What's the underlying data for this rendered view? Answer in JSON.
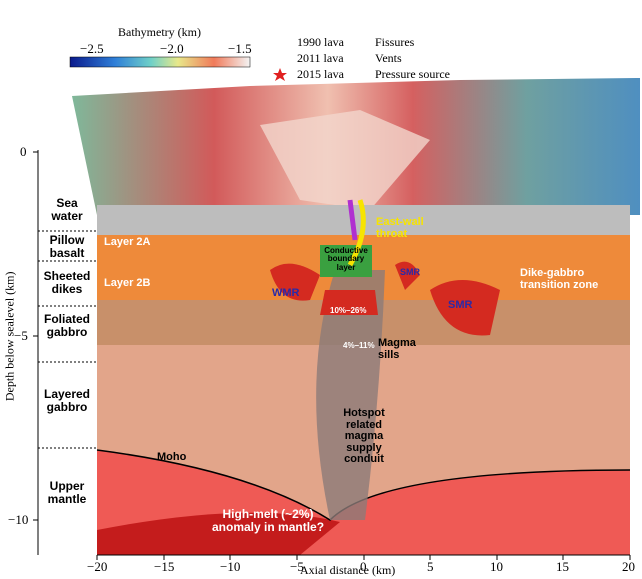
{
  "colorbar": {
    "title": "Bathymetry (km)",
    "ticks": [
      "−2.5",
      "−2.0",
      "−1.5"
    ]
  },
  "legend": [
    "1990 lava",
    "2011 lava",
    "2015 lava",
    "Fissures",
    "Vents",
    "Pressure source"
  ],
  "y_axis": {
    "label": "Depth below sealevel (km)",
    "ticks": [
      "0",
      "−5",
      "−10"
    ]
  },
  "x_axis": {
    "label": "Axial distance (km)",
    "ticks": [
      "−20",
      "−15",
      "−10",
      "−5",
      "0",
      "5",
      "10",
      "15",
      "20"
    ]
  },
  "layers": [
    "Sea\nwater",
    "Pillow\nbasalt",
    "Sheeted\ndikes",
    "Foliated\ngabbro",
    "Layered\ngabbro",
    "Upper\nmantle"
  ],
  "annotations": [
    "Layer 2A",
    "Layer 2B",
    "Conductive\nboundary\nlayer",
    "East-wall\nthroat",
    "WMR",
    "SMR",
    "SMR",
    "Dike-gabbro\ntransition zone",
    "10%–26%",
    "4%–11%",
    "Magma\nsills",
    "Hotspot\nrelated\nmagma\nsupply\nconduit",
    "Moho",
    "High-melt (~2%)\nanomaly in mantle?"
  ]
}
